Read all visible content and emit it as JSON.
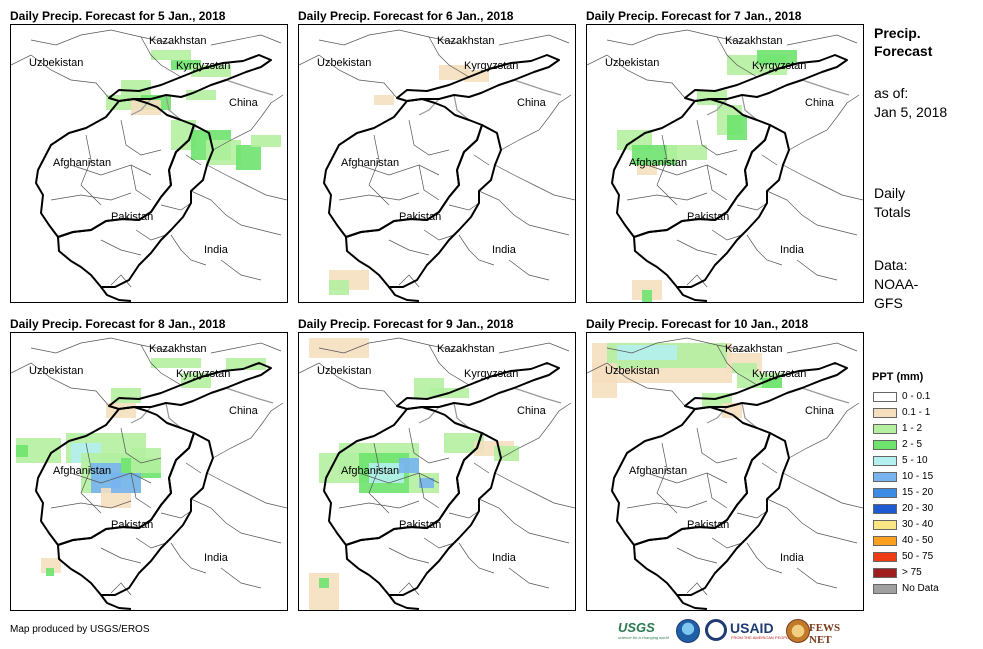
{
  "panels": [
    {
      "title": "Daily Precip. Forecast for 5 Jan., 2018"
    },
    {
      "title": "Daily Precip. Forecast for 6 Jan., 2018"
    },
    {
      "title": "Daily Precip. Forecast for 7 Jan., 2018"
    },
    {
      "title": "Daily Precip. Forecast for 8 Jan., 2018"
    },
    {
      "title": "Daily Precip. Forecast for 9 Jan., 2018"
    },
    {
      "title": "Daily Precip. Forecast for 10 Jan., 2018"
    }
  ],
  "map_labels": {
    "kazakhstan": "Kazakhstan",
    "uzbekistan": "Uzbekistan",
    "kyrgyzstan": "Kyrgyzstan",
    "china": "China",
    "afghanistan": "Afghanistan",
    "pakistan": "Pakistan",
    "india": "India"
  },
  "sidebar": {
    "title_line1": "Precip.",
    "title_line2": "Forecast",
    "asof_label": "as of:",
    "asof_date": "Jan 5, 2018",
    "totals_line1": "Daily",
    "totals_line2": "Totals",
    "data_line1": "Data:",
    "data_line2": "NOAA-",
    "data_line3": "GFS"
  },
  "legend": {
    "title": "PPT (mm)",
    "items": [
      {
        "label": "0 - 0.1",
        "color": "#ffffff"
      },
      {
        "label": "0.1 - 1",
        "color": "#f5dfbf"
      },
      {
        "label": "1 - 2",
        "color": "#b4f0a0"
      },
      {
        "label": "2 - 5",
        "color": "#6ee36e"
      },
      {
        "label": "5 - 10",
        "color": "#b4f0f0"
      },
      {
        "label": "10 - 15",
        "color": "#78b4f0"
      },
      {
        "label": "15 - 20",
        "color": "#3c8ce6"
      },
      {
        "label": "20 - 30",
        "color": "#1e5ad2"
      },
      {
        "label": "30 - 40",
        "color": "#fae682"
      },
      {
        "label": "40 - 50",
        "color": "#faa01e"
      },
      {
        "label": "50 - 75",
        "color": "#f03c14"
      },
      {
        "label": "> 75",
        "color": "#a01e1e"
      },
      {
        "label": "No Data",
        "color": "#a0a0a0"
      }
    ]
  },
  "footer": {
    "credit": "Map produced by USGS/EROS",
    "usgs": "USGS",
    "usgs_tagline": "science for a changing world",
    "usaid": "USAID",
    "usaid_tagline": "FROM THE AMERICAN PEOPLE",
    "fews": "FEWS NET"
  }
}
